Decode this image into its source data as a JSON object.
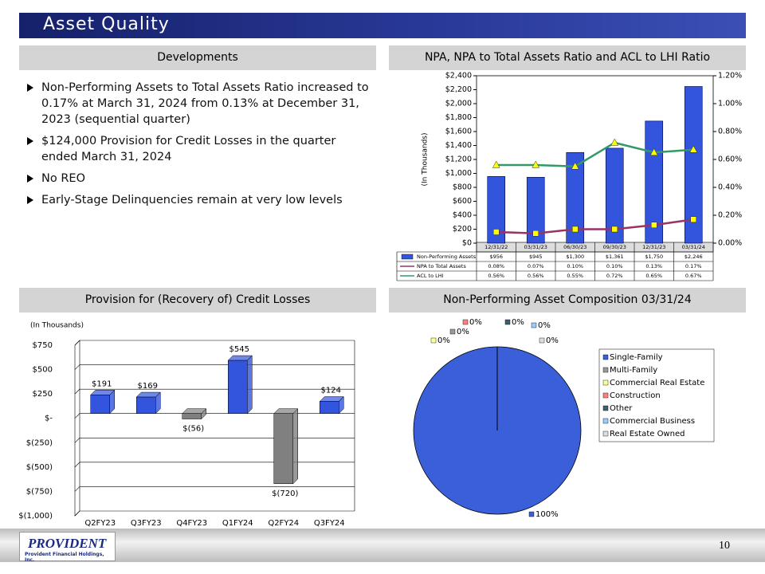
{
  "header": {
    "title": "Asset Quality"
  },
  "developments": {
    "heading": "Developments",
    "bullets": [
      "Non-Performing Assets to Total Assets Ratio increased to 0.17% at March 31, 2024 from 0.13% at December 31, 2023 (sequential quarter)",
      "$124,000 Provision for Credit Losses in the quarter ended March 31, 2024",
      "No REO",
      "Early-Stage Delinquencies remain at very low levels"
    ]
  },
  "footer": {
    "page_number": "10",
    "logo": "PROVIDENT",
    "logo_subtitle": "Provident Financial Holdings, Inc."
  },
  "chart_data": [
    {
      "type": "bar",
      "title": "NPA, NPA to Total Assets Ratio and ACL to LHI Ratio",
      "y_label": "(In Thousands)",
      "categories": [
        "12/31/22",
        "03/31/23",
        "06/30/23",
        "09/30/23",
        "12/31/23",
        "03/31/24"
      ],
      "series": [
        {
          "name": "Non-Performing Assets",
          "type": "bar",
          "color": "#3355dd",
          "values": [
            956,
            945,
            1300,
            1361,
            1750,
            2246
          ],
          "value_labels": [
            "$956",
            "$945",
            "$1,300",
            "$1,361",
            "$1,750",
            "$2,246"
          ]
        },
        {
          "name": "NPA to Total Assets",
          "type": "line",
          "axis": "y2",
          "color": "#993366",
          "marker_color": "#ffff00",
          "marker": "square",
          "values": [
            0.08,
            0.07,
            0.1,
            0.1,
            0.13,
            0.17
          ],
          "value_labels": [
            "0.08%",
            "0.07%",
            "0.10%",
            "0.10%",
            "0.13%",
            "0.17%"
          ]
        },
        {
          "name": "ACL to LHI",
          "type": "line",
          "axis": "y2",
          "color": "#339966",
          "marker_color": "#ffff00",
          "marker": "triangle",
          "values": [
            0.56,
            0.56,
            0.55,
            0.72,
            0.65,
            0.67
          ],
          "value_labels": [
            "0.56%",
            "0.56%",
            "0.55%",
            "0.72%",
            "0.65%",
            "0.67%"
          ]
        }
      ],
      "ylim": [
        0,
        2400
      ],
      "yticks": [
        {
          "value": 0,
          "label": "$0"
        },
        {
          "value": 200,
          "label": "$200"
        },
        {
          "value": 400,
          "label": "$400"
        },
        {
          "value": 600,
          "label": "$600"
        },
        {
          "value": 800,
          "label": "$800"
        },
        {
          "value": 1000,
          "label": "$1,000"
        },
        {
          "value": 1200,
          "label": "$1,200"
        },
        {
          "value": 1400,
          "label": "$1,400"
        },
        {
          "value": 1600,
          "label": "$1,600"
        },
        {
          "value": 1800,
          "label": "$1,800"
        },
        {
          "value": 2000,
          "label": "$2,000"
        },
        {
          "value": 2200,
          "label": "$2,200"
        },
        {
          "value": 2400,
          "label": "$2,400"
        }
      ],
      "y2lim": [
        0,
        1.2
      ],
      "y2ticks": [
        {
          "value": 0,
          "label": "0.00%"
        },
        {
          "value": 0.2,
          "label": "0.20%"
        },
        {
          "value": 0.4,
          "label": "0.40%"
        },
        {
          "value": 0.6,
          "label": "0.60%"
        },
        {
          "value": 0.8,
          "label": "0.80%"
        },
        {
          "value": 1.0,
          "label": "1.00%"
        },
        {
          "value": 1.2,
          "label": "1.20%"
        }
      ],
      "data_table": true
    },
    {
      "type": "bar3d",
      "title": "Provision for (Recovery of) Credit Losses",
      "y_label": "(In Thousands)",
      "categories": [
        "Q2FY23",
        "Q3FY23",
        "Q4FY23",
        "Q1FY24",
        "Q2FY24",
        "Q3FY24"
      ],
      "values": [
        191,
        169,
        -56,
        545,
        -720,
        124
      ],
      "value_labels": [
        "$191",
        "$169",
        "$(56)",
        "$545",
        "$(720)",
        "$124"
      ],
      "colors": [
        "#3355dd",
        "#3355dd",
        "#808080",
        "#3355dd",
        "#808080",
        "#3355dd"
      ],
      "ylim": [
        -1000,
        750
      ],
      "yticks": [
        {
          "value": -1000,
          "label": "$(1,000)"
        },
        {
          "value": -750,
          "label": "$(750)"
        },
        {
          "value": -500,
          "label": "$(500)"
        },
        {
          "value": -250,
          "label": "$(250)"
        },
        {
          "value": 0,
          "label": "$-"
        },
        {
          "value": 250,
          "label": "$250"
        },
        {
          "value": 500,
          "label": "$500"
        },
        {
          "value": 750,
          "label": "$750"
        }
      ],
      "grid": true
    },
    {
      "type": "pie",
      "title": "Non-Performing Asset Composition 03/31/24",
      "categories": [
        "Single-Family",
        "Multi-Family",
        "Commercial Real Estate",
        "Construction",
        "Other",
        "Commercial Business",
        "Real Estate Owned"
      ],
      "values": [
        100,
        0,
        0,
        0,
        0,
        0,
        0
      ],
      "value_labels": [
        "100%",
        "0%",
        "0%",
        "0%",
        "0%",
        "0%",
        "0%"
      ],
      "colors": [
        "#3a5fd8",
        "#999999",
        "#ffff99",
        "#ff8080",
        "#3f5f6f",
        "#99ccff",
        "#dddddd"
      ],
      "legend": "right"
    }
  ]
}
